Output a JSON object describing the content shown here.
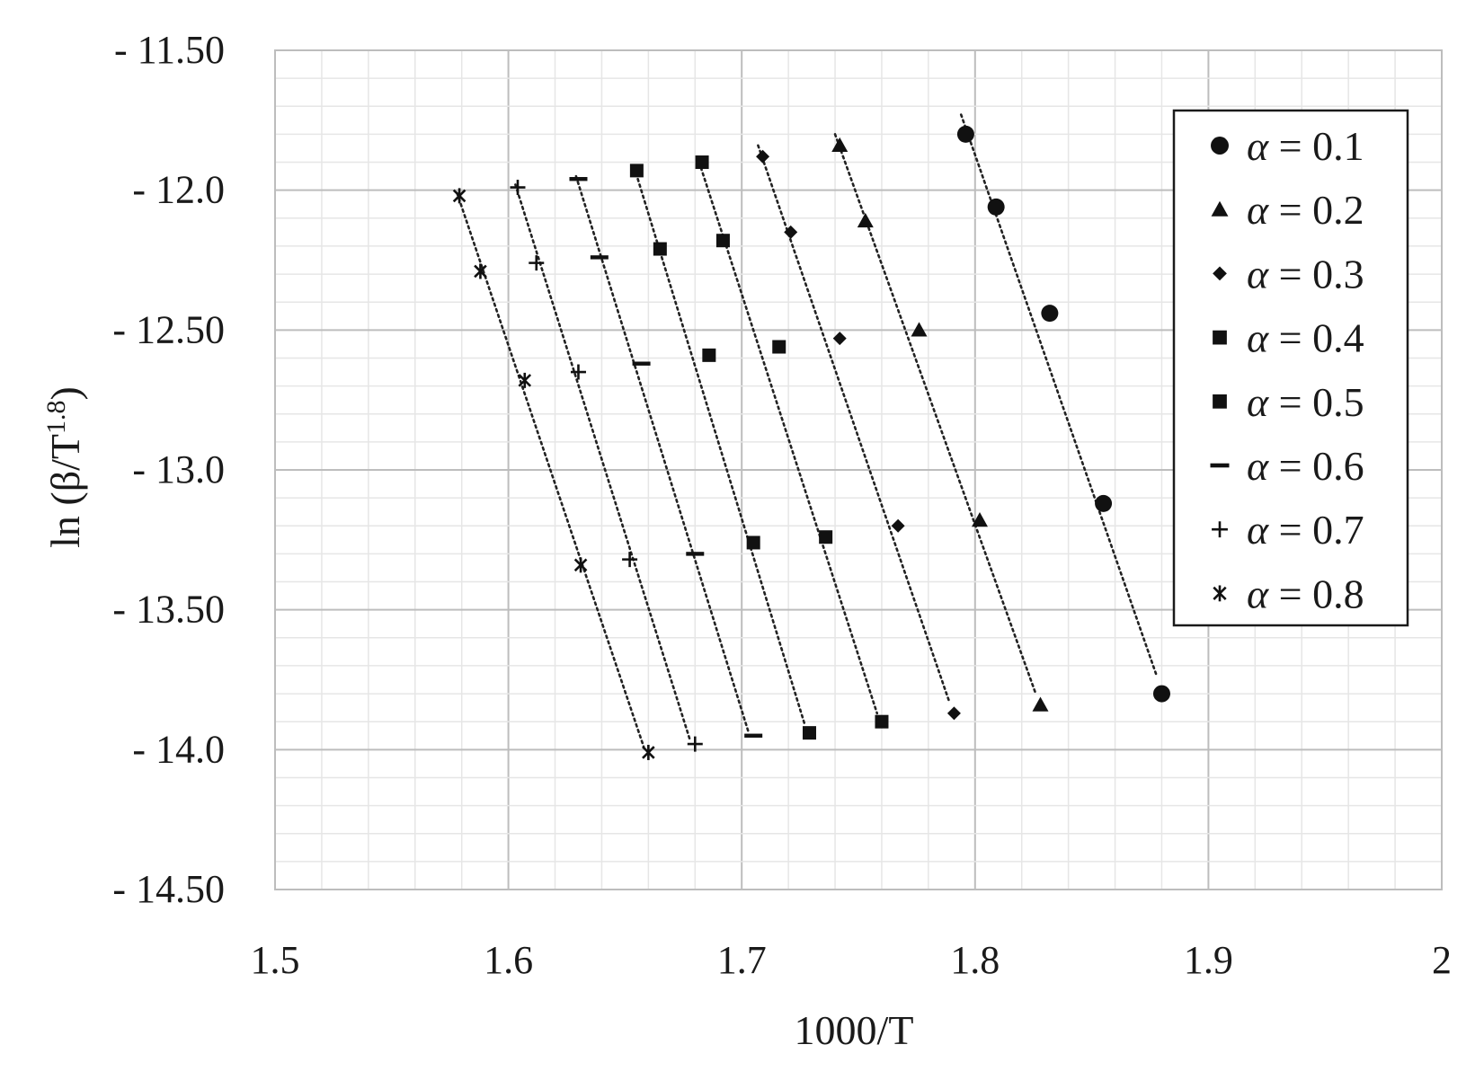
{
  "chart_data": {
    "type": "scatter",
    "xlabel": "1000/T",
    "ylabel": "ln (β/T",
    "ylabel_sup": "1.8",
    "ylabel_close": ")",
    "xlim": [
      1.5,
      2.0
    ],
    "ylim": [
      -14.5,
      -11.5
    ],
    "x_ticks": [
      {
        "value": 1.5,
        "label": "1.5"
      },
      {
        "value": 1.6,
        "label": "1.6"
      },
      {
        "value": 1.7,
        "label": "1.7"
      },
      {
        "value": 1.8,
        "label": "1.8"
      },
      {
        "value": 1.9,
        "label": "1.9"
      },
      {
        "value": 2.0,
        "label": "2"
      }
    ],
    "y_ticks": [
      {
        "value": -11.5,
        "label": "- 11.50"
      },
      {
        "value": -12.0,
        "label": "- 12.0"
      },
      {
        "value": -12.5,
        "label": "- 12.50"
      },
      {
        "value": -13.0,
        "label": "- 13.0"
      },
      {
        "value": -13.5,
        "label": "- 13.50"
      },
      {
        "value": -14.0,
        "label": "- 14.0"
      },
      {
        "value": -14.5,
        "label": "- 14.50"
      }
    ],
    "grid": true,
    "minor_grid": true,
    "legend_position": "top-right",
    "trendline_style": "dotted linear",
    "series": [
      {
        "name": "α = 0.1",
        "label_prefix": "α",
        "label_suffix": " = 0.1",
        "marker": "circle",
        "x": [
          1.796,
          1.809,
          1.832,
          1.855,
          1.88
        ],
        "y": [
          -11.8,
          -12.06,
          -12.44,
          -13.12,
          -13.8
        ],
        "trend": {
          "x": [
            1.794,
            1.878
          ],
          "y": [
            -11.73,
            -13.74
          ]
        }
      },
      {
        "name": "α = 0.2",
        "label_prefix": "α",
        "label_suffix": " = 0.2",
        "marker": "triangle",
        "x": [
          1.742,
          1.753,
          1.776,
          1.802,
          1.828
        ],
        "y": [
          -11.84,
          -12.11,
          -12.5,
          -13.18,
          -13.84
        ],
        "trend": {
          "x": [
            1.74,
            1.826
          ],
          "y": [
            -11.8,
            -13.8
          ]
        }
      },
      {
        "name": "α = 0.3",
        "label_prefix": "α",
        "label_suffix": " = 0.3",
        "marker": "diamond",
        "x": [
          1.709,
          1.721,
          1.742,
          1.767,
          1.791
        ],
        "y": [
          -11.88,
          -12.15,
          -12.53,
          -13.2,
          -13.87
        ],
        "trend": {
          "x": [
            1.707,
            1.789
          ],
          "y": [
            -11.84,
            -13.83
          ]
        }
      },
      {
        "name": "α = 0.4",
        "label_prefix": "α",
        "label_suffix": " = 0.4",
        "marker": "square",
        "x": [
          1.683,
          1.692,
          1.716,
          1.736,
          1.76
        ],
        "y": [
          -11.9,
          -12.18,
          -12.56,
          -13.24,
          -13.9
        ],
        "trend": {
          "x": [
            1.681,
            1.758
          ],
          "y": [
            -11.88,
            -13.87
          ]
        }
      },
      {
        "name": "α = 0.5",
        "label_prefix": "α",
        "label_suffix": " = 0.5",
        "marker": "square",
        "x": [
          1.655,
          1.665,
          1.686,
          1.705,
          1.729
        ],
        "y": [
          -11.93,
          -12.21,
          -12.59,
          -13.26,
          -13.94
        ],
        "trend": {
          "x": [
            1.654,
            1.727
          ],
          "y": [
            -11.92,
            -13.91
          ]
        }
      },
      {
        "name": "α = 0.6",
        "label_prefix": "α",
        "label_suffix": " = 0.6",
        "marker": "dash",
        "x": [
          1.63,
          1.639,
          1.657,
          1.68,
          1.705
        ],
        "y": [
          -11.96,
          -12.24,
          -12.62,
          -13.3,
          -13.95
        ],
        "trend": {
          "x": [
            1.629,
            1.703
          ],
          "y": [
            -11.95,
            -13.94
          ]
        }
      },
      {
        "name": "α = 0.7",
        "label_prefix": "α",
        "label_suffix": " = 0.7",
        "marker": "plus",
        "x": [
          1.604,
          1.612,
          1.63,
          1.652,
          1.68
        ],
        "y": [
          -11.99,
          -12.26,
          -12.65,
          -13.32,
          -13.98
        ],
        "trend": {
          "x": [
            1.603,
            1.678
          ],
          "y": [
            -11.98,
            -13.97
          ]
        }
      },
      {
        "name": "α = 0.8",
        "label_prefix": "α",
        "label_suffix": " = 0.8",
        "marker": "star",
        "x": [
          1.579,
          1.588,
          1.607,
          1.631,
          1.66
        ],
        "y": [
          -12.02,
          -12.29,
          -12.68,
          -13.34,
          -14.01
        ],
        "trend": {
          "x": [
            1.578,
            1.658
          ],
          "y": [
            -12.01,
            -13.99
          ]
        }
      }
    ]
  }
}
